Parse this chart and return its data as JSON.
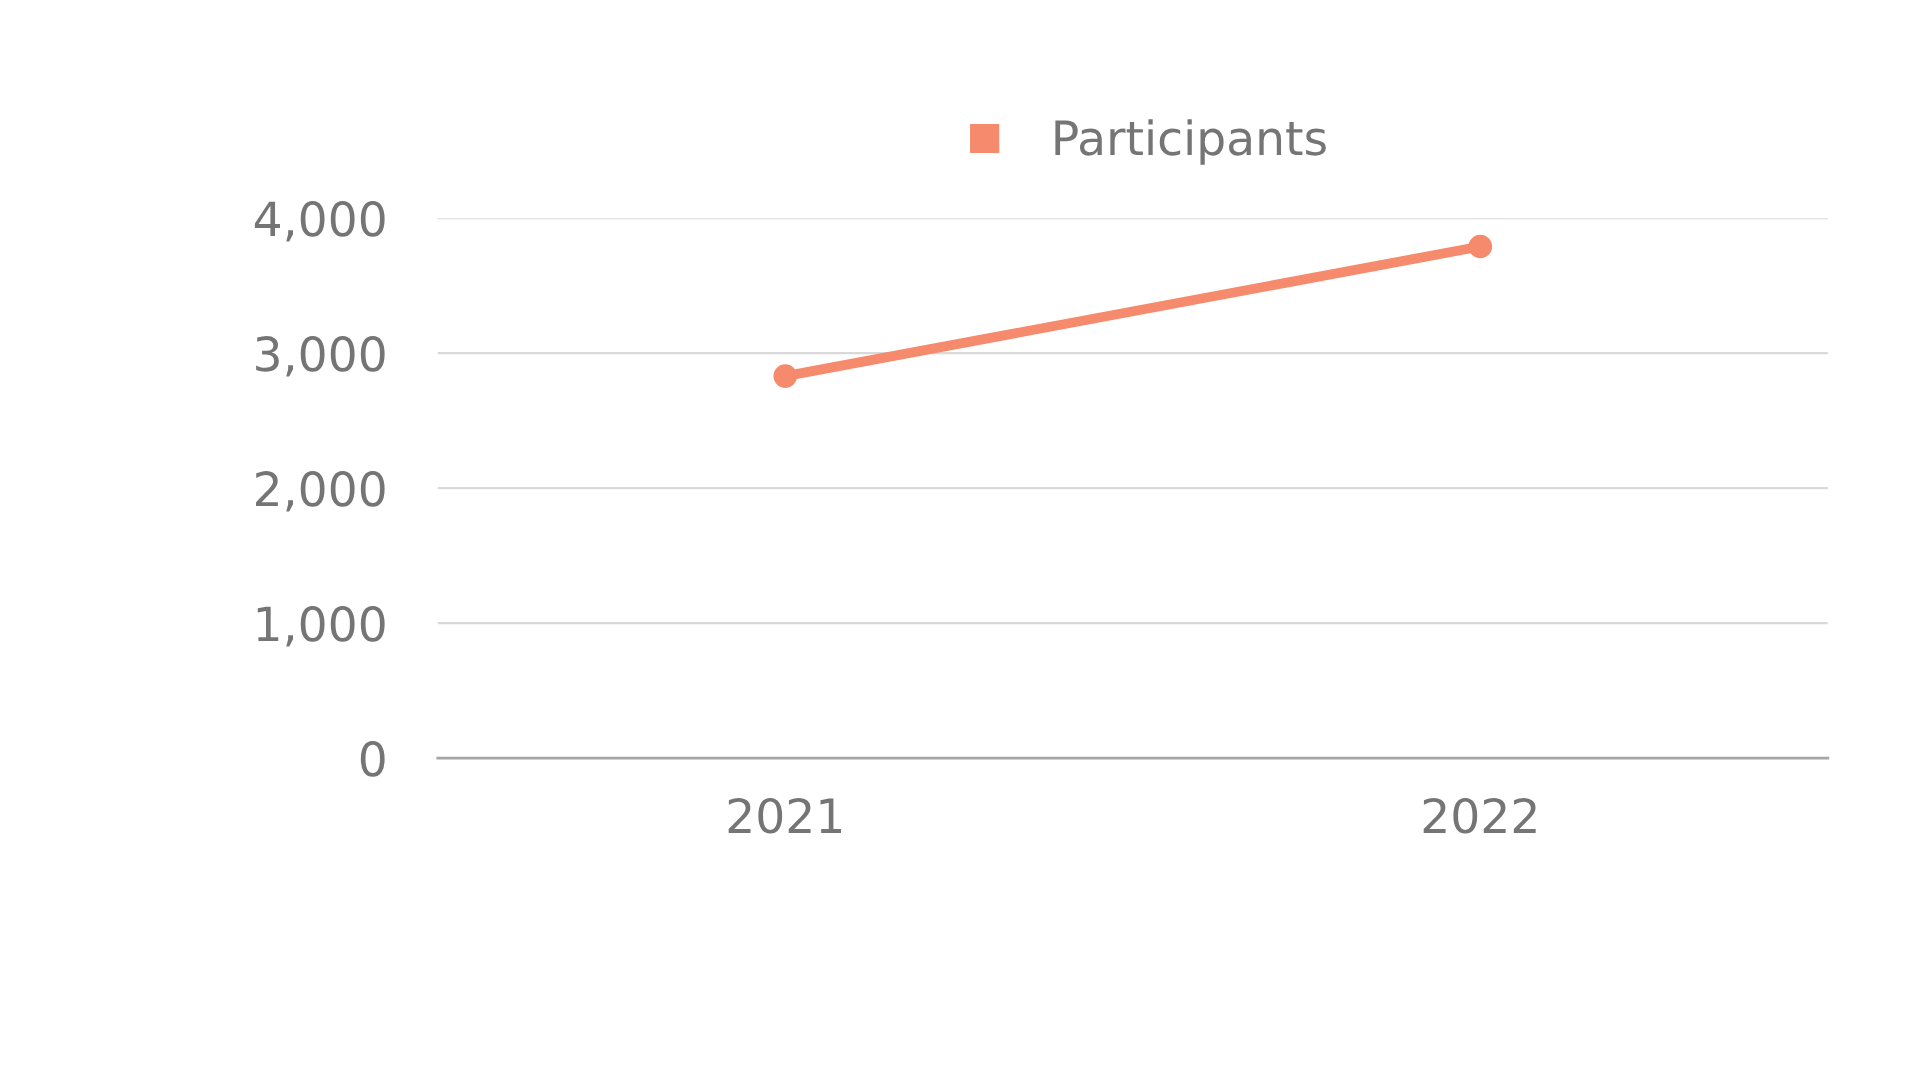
{
  "chart_data": {
    "type": "line",
    "categories": [
      "2021",
      "2022"
    ],
    "series": [
      {
        "name": "Participants",
        "color": "#f58a6c",
        "values": [
          2830,
          3790
        ]
      }
    ],
    "ylim": [
      0,
      4000
    ],
    "yticks": [
      {
        "value": 0,
        "label": "0"
      },
      {
        "value": 1000,
        "label": "1,000"
      },
      {
        "value": 2000,
        "label": "2,000"
      },
      {
        "value": 3000,
        "label": "3,000"
      },
      {
        "value": 4000,
        "label": "4,000"
      }
    ],
    "grid": "y",
    "legend": "top",
    "marker": "circle",
    "line_style": "solid"
  }
}
